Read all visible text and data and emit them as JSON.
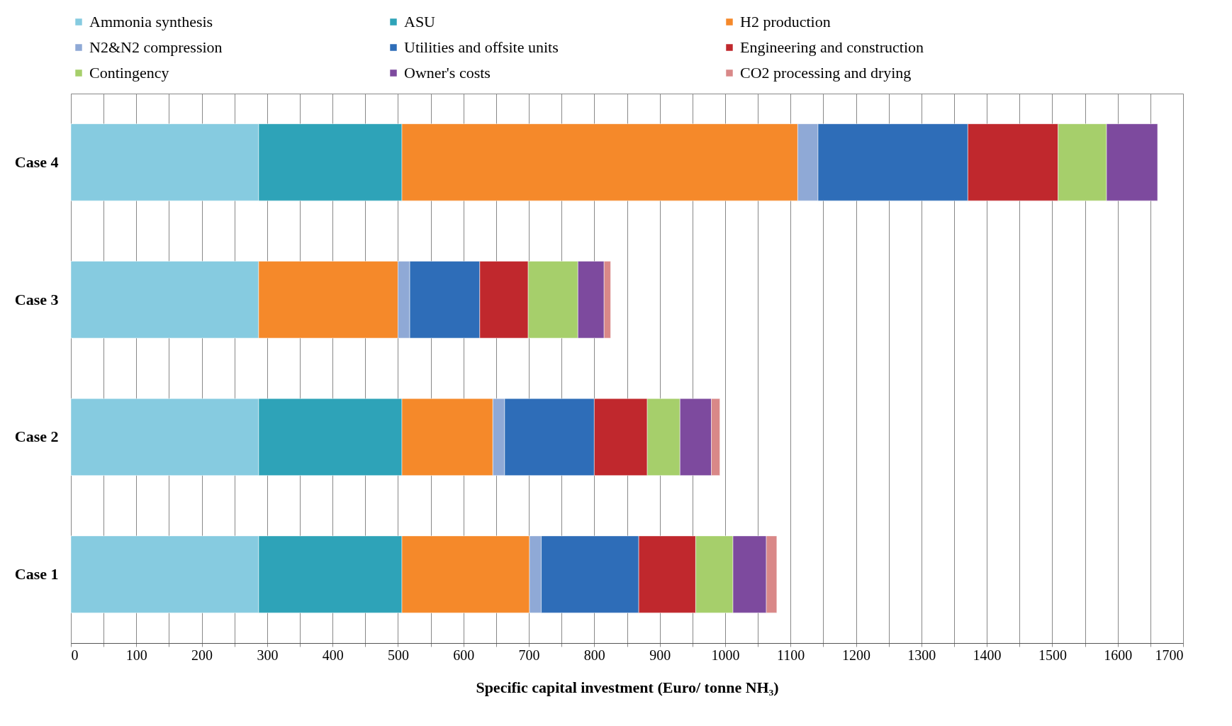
{
  "chart_data": {
    "type": "bar",
    "orientation": "horizontal",
    "stacked": true,
    "xlabel": "Specific capital investment (Euro/ tonne NH₃)",
    "categories": [
      "Case 4",
      "Case 3",
      "Case 2",
      "Case 1"
    ],
    "series": [
      {
        "name": "Ammonia synthesis",
        "color": "#86cbe0",
        "values": [
          287,
          287,
          287,
          287
        ]
      },
      {
        "name": "ASU",
        "color": "#2ea3b8",
        "values": [
          219,
          null,
          219,
          219
        ]
      },
      {
        "name": "H2 production",
        "color": "#f5892a",
        "values": [
          605,
          213,
          139,
          195
        ]
      },
      {
        "name": "N2&N2 compression",
        "color": "#8fa9d6",
        "values": [
          31,
          18,
          18,
          18
        ]
      },
      {
        "name": "Utilities and offsite units",
        "color": "#2e6db8",
        "values": [
          229,
          107,
          137,
          149
        ]
      },
      {
        "name": "Engineering and construction",
        "color": "#c0282d",
        "values": [
          138,
          74,
          81,
          87
        ]
      },
      {
        "name": "Contingency",
        "color": "#a6cf6b",
        "values": [
          74,
          76,
          50,
          57
        ]
      },
      {
        "name": "Owner's costs",
        "color": "#7d4a9e",
        "values": [
          78,
          40,
          48,
          51
        ]
      },
      {
        "name": "CO2 processing and drying",
        "color": "#d98888",
        "values": [
          null,
          10,
          13,
          16
        ]
      }
    ],
    "xlim": [
      0,
      1700
    ],
    "xticks": [
      0,
      {
        "value": 50,
        "label": null
      },
      100,
      {
        "value": 150,
        "label": null
      },
      200,
      {
        "value": 250,
        "label": null
      },
      300,
      {
        "value": 350,
        "label": null
      },
      400,
      {
        "value": 450,
        "label": null
      },
      500,
      {
        "value": 550,
        "label": null
      },
      600,
      {
        "value": 650,
        "label": null
      },
      700,
      {
        "value": 750,
        "label": null
      },
      800,
      {
        "value": 850,
        "label": null
      },
      900,
      {
        "value": 950,
        "label": null
      },
      1000,
      {
        "value": 1050,
        "label": null
      },
      1100,
      {
        "value": 1150,
        "label": null
      },
      1200,
      {
        "value": 1250,
        "label": null
      },
      1300,
      {
        "value": 1350,
        "label": null
      },
      1400,
      {
        "value": 1450,
        "label": null
      },
      1500,
      {
        "value": 1550,
        "label": null
      },
      1600,
      {
        "value": 1650,
        "label": null
      },
      1700
    ],
    "grid": "x",
    "legend": "top"
  }
}
